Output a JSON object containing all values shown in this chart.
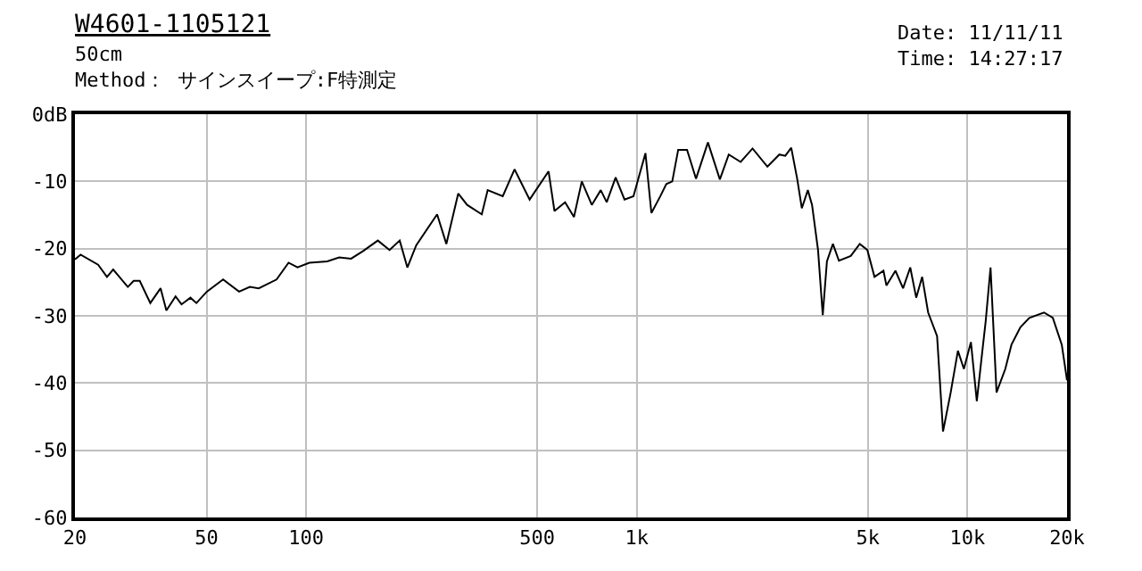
{
  "chart_data": {
    "type": "line",
    "title": "W4601-1105121",
    "subtitle": "50cm\nMethod： サインスイープ:F特測定",
    "annotations": [
      "Date: 11/11/11\nTime: 14:27:17"
    ],
    "x": [
      20,
      20.8,
      23.5,
      25.0,
      26.1,
      28.9,
      30.1,
      31.4,
      33.8,
      36.3,
      37.8,
      40.3,
      42.0,
      44.7,
      46.6,
      50.1,
      56.1,
      62.7,
      67.6,
      71.9,
      81.4,
      88.5,
      94.2,
      102.3,
      115.8,
      125.9,
      136.8,
      148.4,
      164.8,
      178.8,
      191.9,
      202.4,
      215.3,
      249,
      265.5,
      288.4,
      306.9,
      339.8,
      354.1,
      393.3,
      426.8,
      474.2,
      541,
      563.7,
      607,
      645.6,
      681.8,
      731,
      778,
      811,
      863,
      918,
      977,
      1062,
      1107,
      1178,
      1228,
      1280,
      1334,
      1419,
      1510,
      1641,
      1783,
      1897,
      2061,
      2239,
      2483,
      2698,
      2812,
      2931,
      3055,
      3155,
      3290,
      3388,
      3532,
      3650,
      3758,
      3918,
      4085,
      4436,
      4723,
      4979,
      5233,
      5571,
      5688,
      6055,
      6385,
      6712,
      6997,
      7293,
      7603,
      8091,
      8434,
      8896,
      9355,
      9751,
      10240,
      10670,
      11040,
      11350,
      11740,
      12240,
      13010,
      13580,
      14450,
      15380,
      17030,
      18110,
      19280,
      20000
    ],
    "series": [
      {
        "color": "#000000",
        "values": [
          -21.6,
          -20.9,
          -22.4,
          -24.2,
          -23.1,
          -25.7,
          -24.8,
          -24.8,
          -28.1,
          -25.9,
          -29.2,
          -27.1,
          -28.3,
          -27.3,
          -28.1,
          -26.4,
          -24.6,
          -26.4,
          -25.7,
          -25.9,
          -24.6,
          -22.1,
          -22.8,
          -22.1,
          -21.9,
          -21.3,
          -21.5,
          -20.4,
          -18.8,
          -20.2,
          -18.8,
          -22.8,
          -19.5,
          -14.9,
          -19.3,
          -11.8,
          -13.5,
          -14.9,
          -11.3,
          -12.2,
          -8.2,
          -12.7,
          -8.5,
          -14.4,
          -13.1,
          -15.3,
          -10.0,
          -13.5,
          -11.3,
          -13.1,
          -9.4,
          -12.7,
          -12.2,
          -5.8,
          -14.7,
          -12.2,
          -10.4,
          -10.0,
          -5.3,
          -5.3,
          -9.6,
          -4.2,
          -9.7,
          -6.0,
          -7.1,
          -5.1,
          -7.8,
          -6.0,
          -6.2,
          -5.0,
          -9.6,
          -14.0,
          -11.3,
          -13.5,
          -20.2,
          -29.9,
          -21.9,
          -19.3,
          -21.8,
          -21.1,
          -19.3,
          -20.2,
          -24.2,
          -23.3,
          -25.5,
          -23.3,
          -25.9,
          -22.8,
          -27.3,
          -24.2,
          -29.5,
          -33.0,
          -47.2,
          -41.4,
          -35.2,
          -37.9,
          -33.9,
          -42.7,
          -36.1,
          -30.8,
          -22.8,
          -41.4,
          -37.9,
          -34.3,
          -31.7,
          -30.3,
          -29.5,
          -30.3,
          -34.3,
          -39.6
        ]
      }
    ],
    "log": "x",
    "xlim": [
      20,
      20000
    ],
    "ylim": [
      -60,
      0
    ],
    "xticks": [
      20,
      50,
      100,
      500,
      {
        "value": 1000,
        "label": "1k"
      },
      {
        "value": 5000,
        "label": "5k"
      },
      {
        "value": 10000,
        "label": "10k"
      },
      {
        "value": 20000,
        "label": "20k"
      }
    ],
    "yticks": [
      {
        "value": 0,
        "label": "0dB"
      },
      -10,
      -20,
      -30,
      -40,
      -50,
      -60
    ],
    "grid": true,
    "marker": "none",
    "line_style": "solid"
  }
}
